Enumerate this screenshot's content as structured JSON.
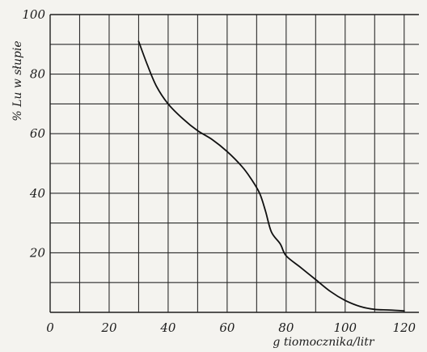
{
  "chart_data": {
    "type": "line",
    "title": "",
    "xlabel": "g tiomocznika/litr",
    "ylabel": "% Lu w słupie",
    "xlim": [
      0,
      125
    ],
    "ylim": [
      0,
      100
    ],
    "x_ticks": [
      0,
      20,
      40,
      60,
      80,
      100,
      120
    ],
    "y_ticks": [
      20,
      40,
      60,
      80,
      100
    ],
    "x_tick_labels": [
      "0",
      "20",
      "40",
      "60",
      "80",
      "100",
      "120"
    ],
    "y_tick_labels": [
      "20",
      "40",
      "60",
      "80",
      "100"
    ],
    "x_grid_step": 10,
    "y_grid_step": 10,
    "grid": true,
    "legend": "none",
    "series": [
      {
        "x": [
          30,
          33,
          36,
          40,
          45,
          50,
          55,
          60,
          65,
          68,
          71,
          73,
          75,
          78,
          80,
          85,
          90,
          95,
          100,
          105,
          110,
          115,
          120
        ],
        "y": [
          91,
          83,
          76,
          70,
          65,
          61,
          58,
          54,
          49,
          45,
          40,
          34,
          27,
          23,
          19,
          15,
          11,
          7,
          4,
          2,
          1,
          0.8,
          0.5
        ]
      }
    ]
  }
}
